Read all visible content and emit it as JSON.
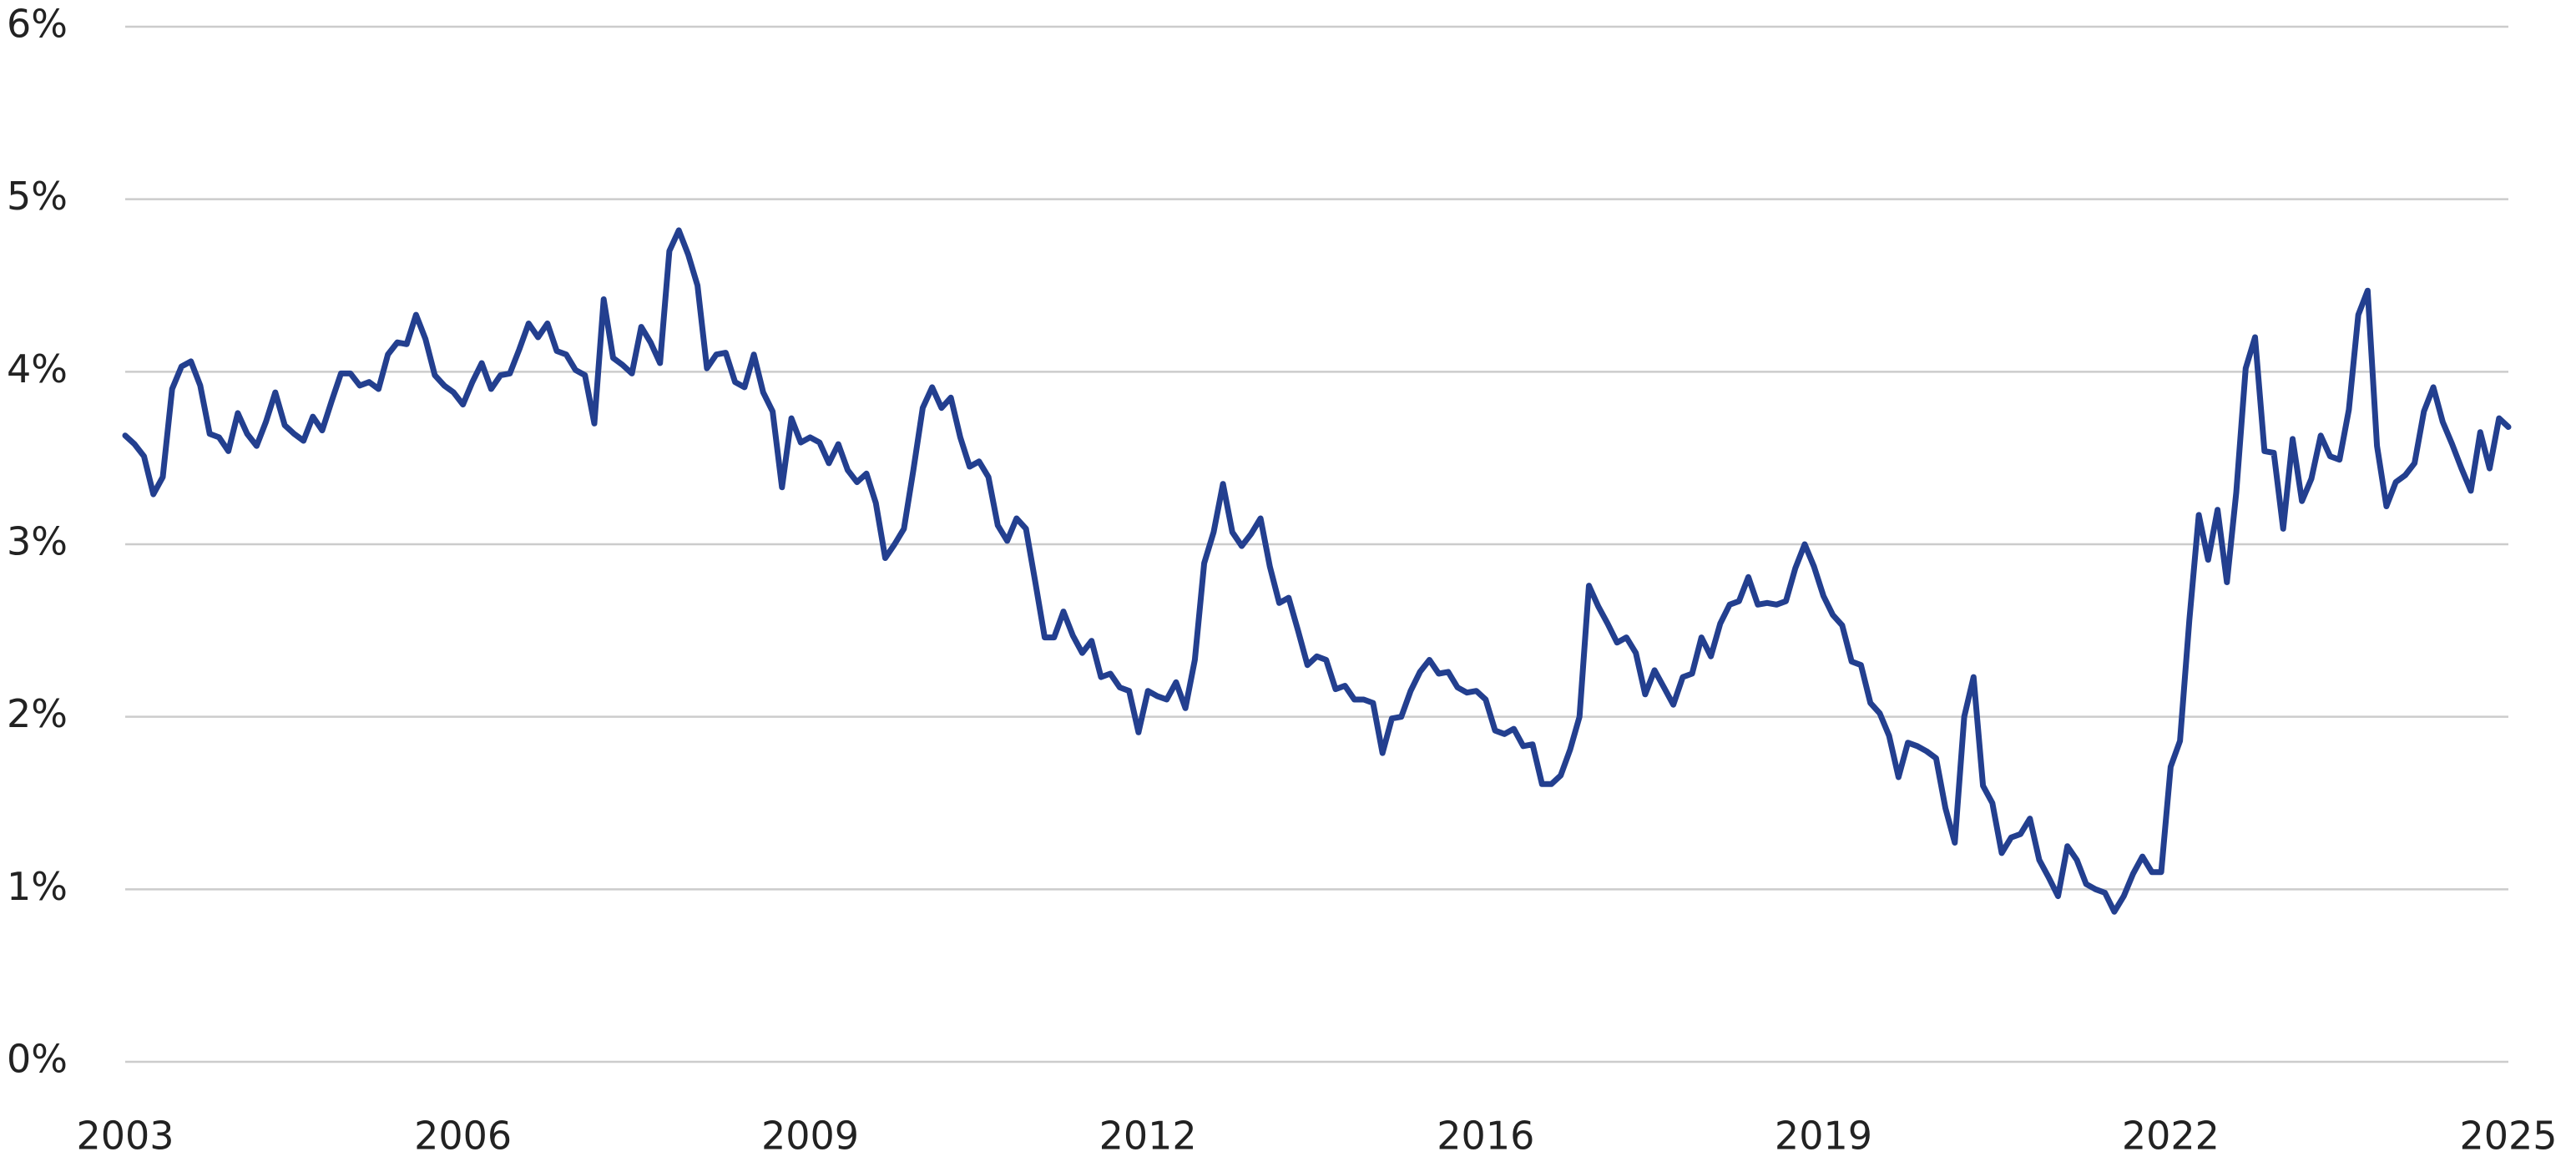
{
  "chart_data": {
    "type": "line",
    "categories": [
      "2003",
      null,
      null,
      null,
      null,
      null,
      null,
      null,
      null,
      null,
      null,
      null,
      null,
      null,
      null,
      null,
      null,
      null,
      null,
      null,
      null,
      null,
      null,
      null,
      null,
      null,
      null,
      null,
      null,
      null,
      null,
      null,
      null,
      null,
      null,
      null,
      "2006",
      null,
      null,
      null,
      null,
      null,
      null,
      null,
      null,
      null,
      null,
      null,
      null,
      null,
      null,
      null,
      null,
      null,
      null,
      null,
      null,
      null,
      null,
      null,
      null,
      null,
      null,
      null,
      null,
      null,
      null,
      null,
      null,
      null,
      null,
      null,
      null,
      "2009",
      null,
      null,
      null,
      null,
      null,
      null,
      null,
      null,
      null,
      null,
      null,
      null,
      null,
      null,
      null,
      null,
      null,
      null,
      null,
      null,
      null,
      null,
      null,
      null,
      null,
      null,
      null,
      null,
      null,
      null,
      null,
      null,
      null,
      null,
      null,
      "2012",
      null,
      null,
      null,
      null,
      null,
      null,
      null,
      null,
      null,
      null,
      null,
      null,
      null,
      null,
      null,
      null,
      null,
      null,
      null,
      null,
      null,
      null,
      null,
      null,
      null,
      null,
      null,
      null,
      null,
      null,
      null,
      null,
      null,
      null,
      null,
      "2016",
      null,
      null,
      null,
      null,
      null,
      null,
      null,
      null,
      null,
      null,
      null,
      null,
      null,
      null,
      null,
      null,
      null,
      null,
      null,
      null,
      null,
      null,
      null,
      null,
      null,
      null,
      null,
      null,
      null,
      null,
      null,
      null,
      null,
      null,
      null,
      "2019",
      null,
      null,
      null,
      null,
      null,
      null,
      null,
      null,
      null,
      null,
      null,
      null,
      null,
      null,
      null,
      null,
      null,
      null,
      null,
      null,
      null,
      null,
      null,
      null,
      null,
      null,
      null,
      null,
      null,
      null,
      null,
      null,
      null,
      null,
      null,
      null,
      "2022",
      null,
      null,
      null,
      null,
      null,
      null,
      null,
      null,
      null,
      null,
      null,
      null,
      null,
      null,
      null,
      null,
      null,
      null,
      null,
      null,
      null,
      null,
      null,
      null,
      null,
      null,
      null,
      null,
      null,
      null,
      null,
      null,
      null,
      null,
      null,
      "2025"
    ],
    "series": [
      {
        "color": "#233f8f",
        "values": [
          3.63,
          3.58,
          3.51,
          3.29,
          3.39,
          3.9,
          4.03,
          4.06,
          3.92,
          3.64,
          3.62,
          3.54,
          3.76,
          3.64,
          3.57,
          3.71,
          3.88,
          3.69,
          3.64,
          3.6,
          3.74,
          3.66,
          3.83,
          3.99,
          3.99,
          3.92,
          3.94,
          3.9,
          4.1,
          4.17,
          4.16,
          4.33,
          4.19,
          3.98,
          3.92,
          3.88,
          3.81,
          3.94,
          4.05,
          3.9,
          3.98,
          3.99,
          4.13,
          4.28,
          4.2,
          4.28,
          4.12,
          4.1,
          4.01,
          3.98,
          3.7,
          4.42,
          4.08,
          4.04,
          3.99,
          4.26,
          4.17,
          4.05,
          4.7,
          4.82,
          4.68,
          4.5,
          4.02,
          4.1,
          4.11,
          3.94,
          3.91,
          4.1,
          3.88,
          3.77,
          3.33,
          3.73,
          3.59,
          3.62,
          3.59,
          3.47,
          3.58,
          3.43,
          3.36,
          3.41,
          3.24,
          2.92,
          3.0,
          3.09,
          3.43,
          3.79,
          3.91,
          3.79,
          3.85,
          3.62,
          3.45,
          3.48,
          3.39,
          3.11,
          3.02,
          3.15,
          3.09,
          2.78,
          2.46,
          2.46,
          2.61,
          2.47,
          2.37,
          2.44,
          2.23,
          2.25,
          2.17,
          2.15,
          1.91,
          2.15,
          2.12,
          2.1,
          2.2,
          2.05,
          2.33,
          2.89,
          3.07,
          3.35,
          3.07,
          2.99,
          3.06,
          3.15,
          2.87,
          2.66,
          2.69,
          2.5,
          2.3,
          2.35,
          2.33,
          2.16,
          2.18,
          2.1,
          2.1,
          2.08,
          1.79,
          1.99,
          2.0,
          2.15,
          2.26,
          2.33,
          2.25,
          2.26,
          2.17,
          2.14,
          2.15,
          2.1,
          1.92,
          1.9,
          1.93,
          1.83,
          1.84,
          1.61,
          1.61,
          1.66,
          1.81,
          2.0,
          2.76,
          2.64,
          2.54,
          2.43,
          2.46,
          2.37,
          2.13,
          2.27,
          2.17,
          2.07,
          2.23,
          2.25,
          2.46,
          2.35,
          2.54,
          2.65,
          2.67,
          2.81,
          2.65,
          2.66,
          2.65,
          2.67,
          2.86,
          3.0,
          2.87,
          2.7,
          2.59,
          2.53,
          2.32,
          2.3,
          2.08,
          2.02,
          1.89,
          1.65,
          1.85,
          1.83,
          1.8,
          1.76,
          1.47,
          1.27,
          2.0,
          2.23,
          1.6,
          1.5,
          1.21,
          1.3,
          1.32,
          1.41,
          1.17,
          1.07,
          0.96,
          1.25,
          1.17,
          1.03,
          1.0,
          0.98,
          0.87,
          0.96,
          1.09,
          1.19,
          1.1,
          1.1,
          1.71,
          1.86,
          2.56,
          3.17,
          2.91,
          3.2,
          2.78,
          3.3,
          4.02,
          4.2,
          3.54,
          3.53,
          3.09,
          3.61,
          3.25,
          3.38,
          3.63,
          3.51,
          3.49,
          3.78,
          4.33,
          4.47,
          3.57,
          3.22,
          3.36,
          3.4,
          3.47,
          3.77,
          3.91,
          3.71,
          3.58,
          3.44,
          3.31,
          3.65,
          3.44,
          3.73,
          3.68
        ]
      }
    ],
    "ylim": [
      0,
      6
    ],
    "yticks": [
      {
        "value": 0,
        "label": "0%"
      },
      {
        "value": 1,
        "label": "1%"
      },
      {
        "value": 2,
        "label": "2%"
      },
      {
        "value": 3,
        "label": "3%"
      },
      {
        "value": 4,
        "label": "4%"
      },
      {
        "value": 5,
        "label": "5%"
      },
      {
        "value": 6,
        "label": "6%"
      }
    ],
    "grid": true
  }
}
